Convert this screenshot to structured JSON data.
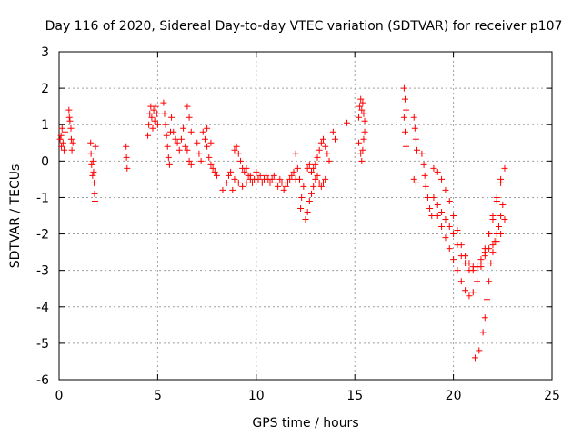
{
  "chart_data": {
    "type": "scatter",
    "title": "Day 116 of 2020, Sidereal Day-to-day VTEC variation (SDTVAR) for receiver p107",
    "xlabel": "GPS time / hours",
    "ylabel": "SDTVAR / TECUs",
    "xlim": [
      0,
      25
    ],
    "ylim": [
      -6,
      3
    ],
    "xticks": [
      0,
      5,
      10,
      15,
      20,
      25
    ],
    "yticks": [
      -6,
      -5,
      -4,
      -3,
      -2,
      -1,
      0,
      1,
      2,
      3
    ],
    "grid": true,
    "marker": "plus",
    "color": "#ff0000",
    "series": [
      {
        "name": "SDTVAR",
        "points": [
          [
            0.05,
            0.6
          ],
          [
            0.1,
            0.7
          ],
          [
            0.12,
            0.4
          ],
          [
            0.15,
            0.9
          ],
          [
            0.2,
            0.5
          ],
          [
            0.25,
            0.3
          ],
          [
            0.3,
            0.8
          ],
          [
            0.5,
            1.4
          ],
          [
            0.52,
            1.2
          ],
          [
            0.55,
            1.1
          ],
          [
            0.6,
            0.9
          ],
          [
            0.62,
            0.6
          ],
          [
            0.65,
            0.3
          ],
          [
            0.7,
            0.5
          ],
          [
            1.6,
            0.5
          ],
          [
            1.62,
            0.2
          ],
          [
            1.65,
            -0.1
          ],
          [
            1.7,
            -0.4
          ],
          [
            1.72,
            0.0
          ],
          [
            1.75,
            -0.3
          ],
          [
            1.78,
            -0.6
          ],
          [
            1.8,
            -0.9
          ],
          [
            1.82,
            -1.1
          ],
          [
            1.85,
            0.4
          ],
          [
            3.4,
            0.4
          ],
          [
            3.42,
            0.1
          ],
          [
            3.45,
            -0.2
          ],
          [
            4.5,
            0.7
          ],
          [
            4.55,
            1.0
          ],
          [
            4.6,
            1.3
          ],
          [
            4.65,
            1.5
          ],
          [
            4.7,
            1.2
          ],
          [
            4.75,
            0.9
          ],
          [
            4.8,
            1.4
          ],
          [
            4.85,
            1.1
          ],
          [
            4.9,
            1.5
          ],
          [
            4.95,
            1.3
          ],
          [
            5.0,
            1.0
          ],
          [
            5.3,
            1.6
          ],
          [
            5.35,
            1.3
          ],
          [
            5.4,
            1.0
          ],
          [
            5.45,
            0.7
          ],
          [
            5.5,
            0.4
          ],
          [
            5.55,
            0.1
          ],
          [
            5.6,
            -0.1
          ],
          [
            5.65,
            0.8
          ],
          [
            5.7,
            1.2
          ],
          [
            5.8,
            0.8
          ],
          [
            5.9,
            0.6
          ],
          [
            6.0,
            0.5
          ],
          [
            6.1,
            0.3
          ],
          [
            6.2,
            0.6
          ],
          [
            6.3,
            0.9
          ],
          [
            6.4,
            0.4
          ],
          [
            6.5,
            1.5
          ],
          [
            6.6,
            1.2
          ],
          [
            6.7,
            0.8
          ],
          [
            6.5,
            0.3
          ],
          [
            6.6,
            0.0
          ],
          [
            6.7,
            -0.1
          ],
          [
            7.0,
            0.5
          ],
          [
            7.1,
            0.2
          ],
          [
            7.2,
            0.0
          ],
          [
            7.3,
            0.8
          ],
          [
            7.4,
            0.6
          ],
          [
            7.5,
            0.4
          ],
          [
            7.6,
            0.1
          ],
          [
            7.7,
            -0.1
          ],
          [
            7.8,
            -0.2
          ],
          [
            7.9,
            -0.3
          ],
          [
            8.0,
            -0.4
          ],
          [
            7.5,
            0.9
          ],
          [
            7.7,
            0.5
          ],
          [
            8.3,
            -0.8
          ],
          [
            8.5,
            -0.6
          ],
          [
            8.6,
            -0.4
          ],
          [
            8.7,
            -0.3
          ],
          [
            8.8,
            -0.8
          ],
          [
            8.9,
            0.3
          ],
          [
            9.0,
            0.4
          ],
          [
            9.1,
            0.2
          ],
          [
            9.2,
            0.0
          ],
          [
            9.3,
            -0.2
          ],
          [
            9.4,
            -0.3
          ],
          [
            9.5,
            -0.2
          ],
          [
            9.6,
            -0.4
          ],
          [
            9.7,
            -0.5
          ],
          [
            9.8,
            -0.6
          ],
          [
            8.9,
            -0.5
          ],
          [
            9.1,
            -0.6
          ],
          [
            9.3,
            -0.7
          ],
          [
            9.5,
            -0.6
          ],
          [
            9.7,
            -0.4
          ],
          [
            9.9,
            -0.5
          ],
          [
            10.0,
            -0.3
          ],
          [
            10.1,
            -0.5
          ],
          [
            10.2,
            -0.4
          ],
          [
            10.3,
            -0.6
          ],
          [
            10.4,
            -0.5
          ],
          [
            10.5,
            -0.4
          ],
          [
            10.6,
            -0.5
          ],
          [
            10.7,
            -0.6
          ],
          [
            10.8,
            -0.5
          ],
          [
            10.9,
            -0.4
          ],
          [
            11.0,
            -0.6
          ],
          [
            11.1,
            -0.7
          ],
          [
            11.2,
            -0.5
          ],
          [
            11.3,
            -0.6
          ],
          [
            11.4,
            -0.8
          ],
          [
            11.5,
            -0.7
          ],
          [
            11.6,
            -0.6
          ],
          [
            11.7,
            -0.5
          ],
          [
            11.8,
            -0.4
          ],
          [
            11.9,
            -0.3
          ],
          [
            12.0,
            -0.5
          ],
          [
            12.0,
            0.2
          ],
          [
            12.1,
            -0.2
          ],
          [
            12.2,
            -0.5
          ],
          [
            12.25,
            -1.3
          ],
          [
            12.3,
            -1.0
          ],
          [
            12.4,
            -0.7
          ],
          [
            12.5,
            -1.6
          ],
          [
            12.6,
            -1.4
          ],
          [
            12.7,
            -1.1
          ],
          [
            12.8,
            -0.9
          ],
          [
            12.9,
            -0.7
          ],
          [
            13.0,
            -0.5
          ],
          [
            13.1,
            -0.4
          ],
          [
            13.2,
            -0.6
          ],
          [
            13.3,
            -0.7
          ],
          [
            13.4,
            -0.6
          ],
          [
            13.5,
            -0.5
          ],
          [
            12.6,
            -0.2
          ],
          [
            12.7,
            -0.1
          ],
          [
            12.8,
            -0.3
          ],
          [
            12.9,
            -0.2
          ],
          [
            13.0,
            -0.1
          ],
          [
            13.1,
            0.1
          ],
          [
            13.2,
            0.3
          ],
          [
            13.3,
            0.5
          ],
          [
            13.4,
            0.6
          ],
          [
            13.5,
            0.4
          ],
          [
            13.6,
            0.2
          ],
          [
            13.7,
            0.0
          ],
          [
            13.9,
            0.8
          ],
          [
            14.0,
            0.6
          ],
          [
            14.6,
            1.05
          ],
          [
            15.2,
            1.2
          ],
          [
            15.25,
            1.5
          ],
          [
            15.3,
            1.7
          ],
          [
            15.35,
            1.4
          ],
          [
            15.4,
            1.6
          ],
          [
            15.45,
            1.3
          ],
          [
            15.5,
            1.1
          ],
          [
            15.2,
            0.5
          ],
          [
            15.3,
            0.2
          ],
          [
            15.35,
            0.0
          ],
          [
            15.4,
            0.3
          ],
          [
            15.45,
            0.6
          ],
          [
            15.5,
            0.8
          ],
          [
            17.5,
            2.0
          ],
          [
            17.55,
            1.7
          ],
          [
            17.6,
            1.4
          ],
          [
            17.5,
            1.2
          ],
          [
            17.55,
            0.8
          ],
          [
            17.6,
            0.4
          ],
          [
            18.0,
            1.2
          ],
          [
            18.05,
            0.9
          ],
          [
            18.1,
            0.6
          ],
          [
            18.15,
            0.3
          ],
          [
            18.0,
            -0.5
          ],
          [
            18.1,
            -0.6
          ],
          [
            18.4,
            0.2
          ],
          [
            18.5,
            -0.1
          ],
          [
            18.55,
            -0.4
          ],
          [
            18.6,
            -0.7
          ],
          [
            18.7,
            -1.0
          ],
          [
            18.8,
            -1.3
          ],
          [
            18.9,
            -1.5
          ],
          [
            19.0,
            -0.2
          ],
          [
            19.2,
            -0.3
          ],
          [
            19.4,
            -0.5
          ],
          [
            19.6,
            -0.8
          ],
          [
            19.8,
            -1.1
          ],
          [
            20.0,
            -1.5
          ],
          [
            20.2,
            -1.9
          ],
          [
            20.4,
            -2.3
          ],
          [
            20.6,
            -2.6
          ],
          [
            20.8,
            -2.8
          ],
          [
            21.0,
            -2.9
          ],
          [
            21.2,
            -2.9
          ],
          [
            21.4,
            -2.7
          ],
          [
            21.6,
            -2.4
          ],
          [
            21.8,
            -2.0
          ],
          [
            22.0,
            -1.6
          ],
          [
            22.2,
            -1.1
          ],
          [
            22.4,
            -0.6
          ],
          [
            22.6,
            -0.2
          ],
          [
            19.0,
            -1.0
          ],
          [
            19.2,
            -1.2
          ],
          [
            19.4,
            -1.4
          ],
          [
            19.6,
            -1.6
          ],
          [
            19.8,
            -1.8
          ],
          [
            20.0,
            -2.0
          ],
          [
            20.2,
            -2.3
          ],
          [
            20.4,
            -2.6
          ],
          [
            20.6,
            -2.8
          ],
          [
            20.8,
            -3.0
          ],
          [
            21.0,
            -3.0
          ],
          [
            21.2,
            -2.9
          ],
          [
            21.4,
            -2.8
          ],
          [
            21.6,
            -2.6
          ],
          [
            21.8,
            -2.4
          ],
          [
            22.0,
            -2.3
          ],
          [
            22.2,
            -2.2
          ],
          [
            22.4,
            -2.0
          ],
          [
            22.6,
            -1.6
          ],
          [
            19.2,
            -1.5
          ],
          [
            19.4,
            -1.8
          ],
          [
            19.6,
            -2.1
          ],
          [
            19.8,
            -2.4
          ],
          [
            20.0,
            -2.7
          ],
          [
            20.2,
            -3.0
          ],
          [
            20.4,
            -3.3
          ],
          [
            20.6,
            -3.55
          ],
          [
            20.8,
            -3.7
          ],
          [
            21.0,
            -3.6
          ],
          [
            21.2,
            -3.3
          ],
          [
            21.4,
            -2.9
          ],
          [
            21.6,
            -2.5
          ],
          [
            21.8,
            -2.0
          ],
          [
            22.0,
            -1.5
          ],
          [
            22.2,
            -1.0
          ],
          [
            22.4,
            -0.5
          ],
          [
            21.1,
            -5.4
          ],
          [
            21.3,
            -5.2
          ],
          [
            21.5,
            -4.7
          ],
          [
            21.6,
            -4.3
          ],
          [
            21.7,
            -3.8
          ],
          [
            21.8,
            -3.3
          ],
          [
            21.9,
            -2.8
          ],
          [
            22.0,
            -2.5
          ],
          [
            22.1,
            -2.2
          ],
          [
            22.2,
            -2.0
          ],
          [
            22.3,
            -1.8
          ],
          [
            22.4,
            -1.5
          ],
          [
            22.5,
            -1.2
          ]
        ]
      }
    ]
  }
}
